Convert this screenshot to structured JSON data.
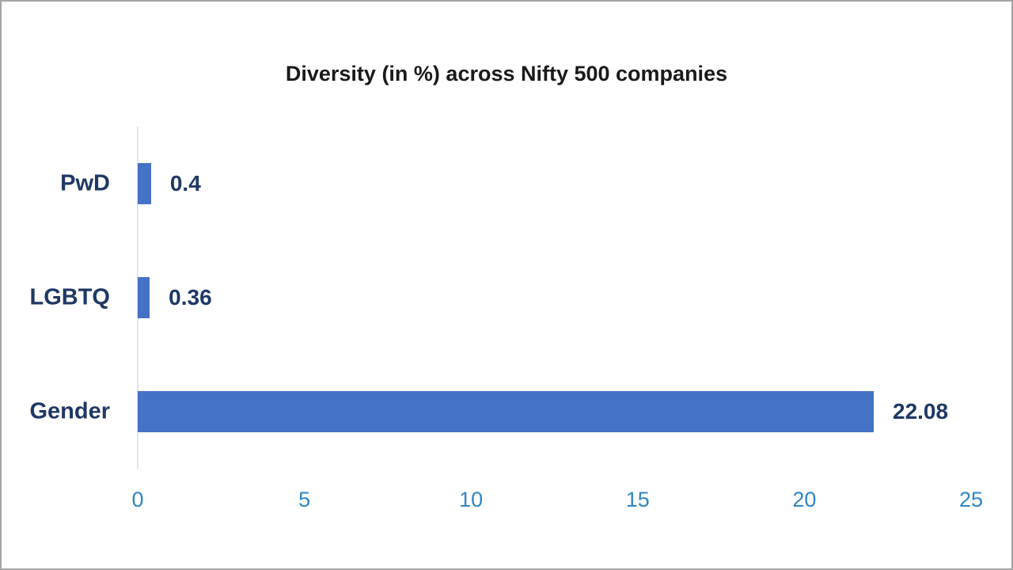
{
  "title": "Diversity (in %) across Nifty 500 companies",
  "colors": {
    "bar": "#4472c4",
    "category_and_data_labels": "#1f3864",
    "axis_ticks": "#2e86c5",
    "axis_line": "#d9e7f5",
    "chart_title": "#1a1a1a",
    "frame_border": "#a6a6a6",
    "background": "#ffffff"
  },
  "chart_data": {
    "type": "bar",
    "orientation": "horizontal",
    "title": "Diversity (in %) across Nifty 500 companies",
    "categories": [
      "PwD",
      "LGBTQ",
      "Gender"
    ],
    "values": [
      0.4,
      0.36,
      22.08
    ],
    "data_labels": [
      "0.4",
      "0.36",
      "22.08"
    ],
    "xlabel": "",
    "ylabel": "",
    "xlim": [
      0,
      25
    ],
    "xticks": [
      0,
      5,
      10,
      15,
      20,
      25
    ],
    "grid": false,
    "legend": "none",
    "data_label_position": "outside-end"
  }
}
